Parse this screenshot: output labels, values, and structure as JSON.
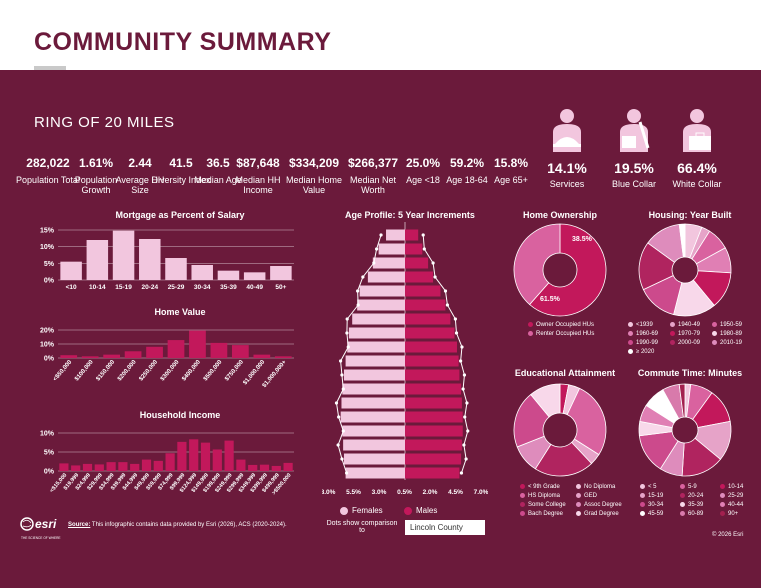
{
  "header": {
    "title": "COMMUNITY SUMMARY"
  },
  "ring": "RING OF 20 MILES",
  "stats": [
    {
      "value": "282,022",
      "label": "Population Total"
    },
    {
      "value": "1.61%",
      "label": "Population Growth"
    },
    {
      "value": "2.44",
      "label": "Average HH Size"
    },
    {
      "value": "41.5",
      "label": "Diversity Index"
    },
    {
      "value": "36.5",
      "label": "Median Age"
    },
    {
      "value": "$87,648",
      "label": "Median HH Income"
    },
    {
      "value": "$334,209",
      "label": "Median Home Value"
    },
    {
      "value": "$266,377",
      "label": "Median Net Worth"
    },
    {
      "value": "25.0%",
      "label": "Age <18"
    },
    {
      "value": "59.2%",
      "label": "Age 18-64"
    },
    {
      "value": "15.8%",
      "label": "Age 65+"
    }
  ],
  "employment": [
    {
      "value": "14.1%",
      "label": "Services",
      "icon": "services-worker-icon"
    },
    {
      "value": "19.5%",
      "label": "Blue Collar",
      "icon": "blue-collar-worker-icon"
    },
    {
      "value": "66.4%",
      "label": "White Collar",
      "icon": "white-collar-worker-icon"
    }
  ],
  "colors": {
    "background": "#6b1a3b",
    "light": "#f2c6de",
    "mid": "#d9629f",
    "accent": "#c2185b"
  },
  "chart_data": [
    {
      "type": "bar",
      "title": "Mortgage as Percent of Salary",
      "categories": [
        "<10",
        "10-14",
        "15-19",
        "20-24",
        "25-29",
        "30-34",
        "35-39",
        "40-49",
        "50+"
      ],
      "values": [
        5.5,
        12,
        14.8,
        12.3,
        6.6,
        4.5,
        2.8,
        2.3,
        4.2
      ],
      "yticks": [
        "15%",
        "10%",
        "5%",
        "0%"
      ],
      "ylim": [
        0,
        15
      ]
    },
    {
      "type": "bar",
      "title": "Home Value",
      "categories": [
        "<$50,000",
        "$100,000",
        "$150,000",
        "$200,000",
        "$250,000",
        "$300,000",
        "$400,000",
        "$500,000",
        "$750,000",
        "$1,000,000",
        "$1,000,000+"
      ],
      "values": [
        2.5,
        1.5,
        3,
        6,
        10,
        16,
        24.5,
        13.5,
        11.5,
        3,
        1.5
      ],
      "yticks": [
        "20%",
        "10%",
        "0%"
      ],
      "ylim": [
        0,
        25
      ]
    },
    {
      "type": "bar",
      "title": "Household Income",
      "categories": [
        "<$15,000",
        "$19,999",
        "$24,999",
        "$29,999",
        "$34,999",
        "$39,999",
        "$44,999",
        "$49,999",
        "$59,999",
        "$74,999",
        "$99,999",
        "$124,999",
        "$149,999",
        "$199,999",
        "$249,999",
        "$299,999",
        "$349,999",
        "$399,999",
        "$499,999",
        ">$500,000"
      ],
      "values": [
        3,
        2.2,
        2.8,
        2.6,
        3.5,
        3.5,
        2.8,
        4.5,
        4,
        7,
        11.5,
        12.5,
        11.2,
        8.5,
        12,
        4.5,
        2.4,
        2.5,
        2,
        3.2
      ],
      "yticks": [
        "10%",
        "5%",
        "0%"
      ],
      "ylim": [
        0,
        15
      ]
    },
    {
      "type": "bar",
      "title": "Age Profile: 5 Year Increments",
      "orientation": "horizontal-pyramid",
      "females": [
        2.3,
        3.2,
        3.9,
        4.5,
        5.5,
        5.8,
        6.4,
        6.8,
        7.0,
        7.2,
        7.4,
        7.6,
        7.7,
        7.8,
        7.6,
        7.5,
        7.4,
        7.2
      ],
      "males": [
        1.6,
        2.1,
        2.8,
        3.4,
        4.3,
        4.9,
        5.5,
        6.0,
        6.3,
        6.5,
        6.6,
        6.8,
        6.9,
        7.0,
        7.0,
        6.9,
        6.8,
        6.6
      ],
      "xticks": [
        "8.0%",
        "5.5%",
        "3.0%",
        "0.5%",
        "2.0%",
        "4.5%",
        "7.0%"
      ],
      "legend": [
        "Females",
        "Males"
      ],
      "comparison_note": "Dots show comparison to",
      "comparison_value": "Lincoln County"
    },
    {
      "type": "pie",
      "title": "Home Ownership",
      "labels": [
        "Owner Occupied HUs",
        "Renter Occupied HUs"
      ],
      "values": [
        61.5,
        38.5
      ],
      "value_labels": [
        "61.5%",
        "38.5%"
      ]
    },
    {
      "type": "pie",
      "title": "Housing: Year Built",
      "labels": [
        "<1939",
        "1940-49",
        "1950-59",
        "1960-69",
        "1970-79",
        "1980-89",
        "1990-99",
        "2000-09",
        "2010-19",
        "≥ 2020"
      ],
      "values": [
        6,
        3,
        8,
        9,
        13,
        15,
        14,
        17,
        13,
        2
      ]
    },
    {
      "type": "pie",
      "title": "Educational Attainment",
      "labels": [
        "< 9th Grade",
        "No Diploma",
        "HS Diploma",
        "GED",
        "Some College",
        "Assoc Degree",
        "Bach Degree",
        "Grad Degree"
      ],
      "values": [
        3,
        4,
        27,
        4,
        21,
        10,
        20,
        11
      ]
    },
    {
      "type": "pie",
      "title": "Commute Time: Minutes",
      "labels": [
        "< 5",
        "5-9",
        "10-14",
        "15-19",
        "20-24",
        "25-29",
        "30-34",
        "35-39",
        "40-44",
        "45-59",
        "60-89",
        "90+"
      ],
      "values": [
        2,
        8,
        12,
        14,
        15,
        8,
        14,
        5,
        6,
        8,
        6,
        2
      ]
    }
  ],
  "footer": {
    "source_label": "Source:",
    "source_text": " This infographic contains data provided by Esri (2026), ACS (2020-2024).",
    "logo_text": "esri",
    "logo_tagline": "THE SCIENCE OF WHERE",
    "copyright": "© 2026 Esri"
  }
}
